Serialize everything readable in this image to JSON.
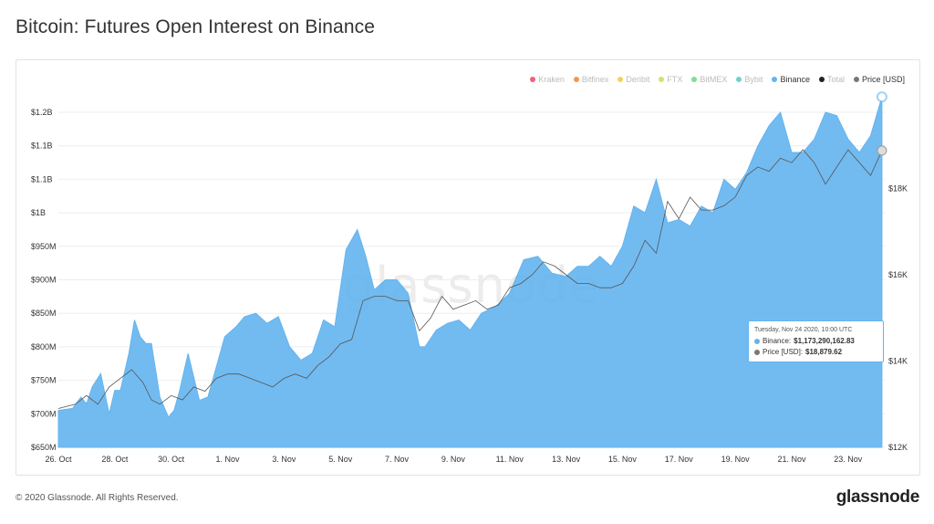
{
  "page": {
    "title": "Bitcoin: Futures Open Interest on Binance",
    "copyright": "© 2020 Glassnode. All Rights Reserved.",
    "logo": "glassnode",
    "watermark": "glassnode"
  },
  "legend": [
    {
      "label": "Kraken",
      "color": "#f0617a",
      "active": false
    },
    {
      "label": "Bitfinex",
      "color": "#f5964f",
      "active": false
    },
    {
      "label": "Deribit",
      "color": "#f5d257",
      "active": false
    },
    {
      "label": "FTX",
      "color": "#c8e86a",
      "active": false
    },
    {
      "label": "BitMEX",
      "color": "#7fe08b",
      "active": false
    },
    {
      "label": "Bybit",
      "color": "#6ed3c8",
      "active": false
    },
    {
      "label": "Binance",
      "color": "#63b4ef",
      "active": true
    },
    {
      "label": "Total",
      "color": "#222222",
      "active": false
    },
    {
      "label": "Price [USD]",
      "color": "#777777",
      "active": true
    }
  ],
  "tooltip": {
    "time": "Tuesday, Nov 24 2020, 10:00 UTC",
    "binance_label": "Binance:",
    "binance_value": "$1,173,290,162.83",
    "price_label": "Price [USD]:",
    "price_value": "$18,879.62"
  },
  "chart_data": {
    "type": "area",
    "title": "Bitcoin: Futures Open Interest on Binance",
    "x_ticks": [
      "26. Oct",
      "28. Oct",
      "30. Oct",
      "1. Nov",
      "3. Nov",
      "5. Nov",
      "7. Nov",
      "9. Nov",
      "11. Nov",
      "13. Nov",
      "15. Nov",
      "17. Nov",
      "19. Nov",
      "21. Nov",
      "23. Nov"
    ],
    "y_left_ticks": [
      "$650M",
      "$700M",
      "$750M",
      "$800M",
      "$850M",
      "$900M",
      "$950M",
      "$1B",
      "$1.1B",
      "$1.1B",
      "$1.2B"
    ],
    "y_left_tick_values": [
      650,
      700,
      750,
      800,
      850,
      900,
      950,
      1000,
      1050,
      1100,
      1150
    ],
    "y_left_range": [
      650,
      1165
    ],
    "y_right_ticks": [
      "$12K",
      "$14K",
      "$16K",
      "$18K"
    ],
    "y_right_tick_values": [
      12000,
      14000,
      16000,
      18000
    ],
    "y_right_range": [
      12000,
      20000
    ],
    "x_range": [
      0,
      29.3
    ],
    "grid": true,
    "legend_position": "top-right",
    "series": [
      {
        "name": "Binance",
        "axis": "left",
        "color": "#63b4ef",
        "x": [
          0,
          0.5,
          0.8,
          1.0,
          1.2,
          1.5,
          1.8,
          2.0,
          2.2,
          2.5,
          2.7,
          2.9,
          3.1,
          3.3,
          3.6,
          3.9,
          4.1,
          4.3,
          4.6,
          5.0,
          5.3,
          5.6,
          5.9,
          6.3,
          6.6,
          7.0,
          7.4,
          7.8,
          8.2,
          8.6,
          9.0,
          9.4,
          9.8,
          10.2,
          10.6,
          10.9,
          11.2,
          11.6,
          12.0,
          12.4,
          12.8,
          13.0,
          13.4,
          13.8,
          14.2,
          14.6,
          15.0,
          15.5,
          16.0,
          16.5,
          17.0,
          17.5,
          18.0,
          18.4,
          18.8,
          19.2,
          19.6,
          20.0,
          20.4,
          20.8,
          21.2,
          21.6,
          22.0,
          22.4,
          22.8,
          23.2,
          23.6,
          24.0,
          24.4,
          24.8,
          25.2,
          25.6,
          26.0,
          26.4,
          26.8,
          27.2,
          27.6,
          28.0,
          28.4,
          28.8,
          29.2
        ],
        "values": [
          705,
          708,
          725,
          715,
          740,
          760,
          700,
          735,
          735,
          790,
          840,
          815,
          805,
          805,
          725,
          695,
          705,
          735,
          790,
          720,
          725,
          770,
          815,
          830,
          845,
          850,
          835,
          845,
          800,
          780,
          790,
          840,
          830,
          945,
          975,
          935,
          885,
          900,
          900,
          880,
          800,
          800,
          825,
          835,
          840,
          825,
          850,
          860,
          880,
          930,
          935,
          910,
          905,
          920,
          920,
          935,
          920,
          950,
          1010,
          1000,
          1050,
          985,
          990,
          980,
          1010,
          1000,
          1050,
          1035,
          1060,
          1100,
          1130,
          1150,
          1090,
          1090,
          1110,
          1150,
          1145,
          1110,
          1090,
          1115,
          1173
        ]
      },
      {
        "name": "Price [USD]",
        "axis": "right",
        "color": "#777777",
        "x": [
          0,
          0.6,
          1.0,
          1.4,
          1.8,
          2.2,
          2.6,
          3.0,
          3.3,
          3.6,
          4.0,
          4.4,
          4.8,
          5.2,
          5.6,
          6.0,
          6.4,
          6.8,
          7.2,
          7.6,
          8.0,
          8.4,
          8.8,
          9.2,
          9.6,
          10.0,
          10.4,
          10.8,
          11.2,
          11.6,
          12.0,
          12.4,
          12.8,
          13.2,
          13.6,
          14.0,
          14.4,
          14.8,
          15.2,
          15.6,
          16.0,
          16.4,
          16.8,
          17.2,
          17.6,
          18.0,
          18.4,
          18.8,
          19.2,
          19.6,
          20.0,
          20.4,
          20.8,
          21.2,
          21.6,
          22.0,
          22.4,
          22.8,
          23.2,
          23.6,
          24.0,
          24.4,
          24.8,
          25.2,
          25.6,
          26.0,
          26.4,
          26.8,
          27.2,
          27.6,
          28.0,
          28.4,
          28.8,
          29.2
        ],
        "values": [
          12900,
          13000,
          13200,
          13000,
          13400,
          13600,
          13800,
          13500,
          13100,
          13000,
          13200,
          13100,
          13400,
          13300,
          13600,
          13700,
          13700,
          13600,
          13500,
          13400,
          13600,
          13700,
          13600,
          13900,
          14100,
          14400,
          14500,
          15400,
          15500,
          15500,
          15400,
          15400,
          14700,
          15000,
          15500,
          15200,
          15300,
          15400,
          15200,
          15300,
          15700,
          15800,
          16000,
          16300,
          16200,
          16000,
          15800,
          15800,
          15700,
          15700,
          15800,
          16200,
          16800,
          16500,
          17700,
          17300,
          17800,
          17500,
          17500,
          17600,
          17800,
          18300,
          18500,
          18400,
          18700,
          18600,
          18900,
          18600,
          18100,
          18500,
          18900,
          18600,
          18300,
          18880
        ]
      }
    ]
  }
}
